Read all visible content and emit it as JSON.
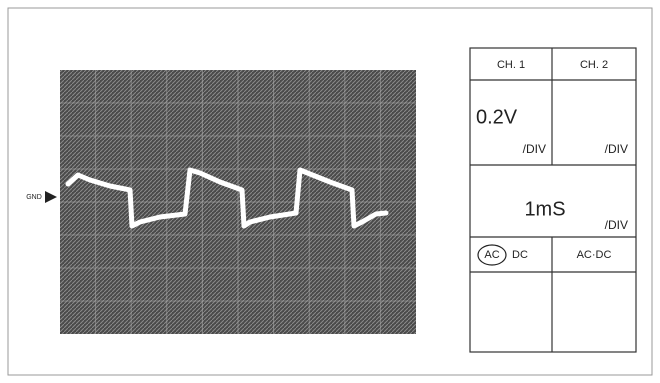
{
  "gnd_label": "GND",
  "table": {
    "headers": [
      "CH. 1",
      "CH. 2"
    ],
    "volts_div": {
      "ch1_value": "0.2V",
      "ch1_unit": "/DIV",
      "ch2_unit": "/DIV"
    },
    "time_div": {
      "value": "1mS",
      "unit": "/DIV"
    },
    "coupling": {
      "ch1_ac": "AC",
      "ch1_dc": "DC",
      "ch2": "AC·DC"
    }
  }
}
